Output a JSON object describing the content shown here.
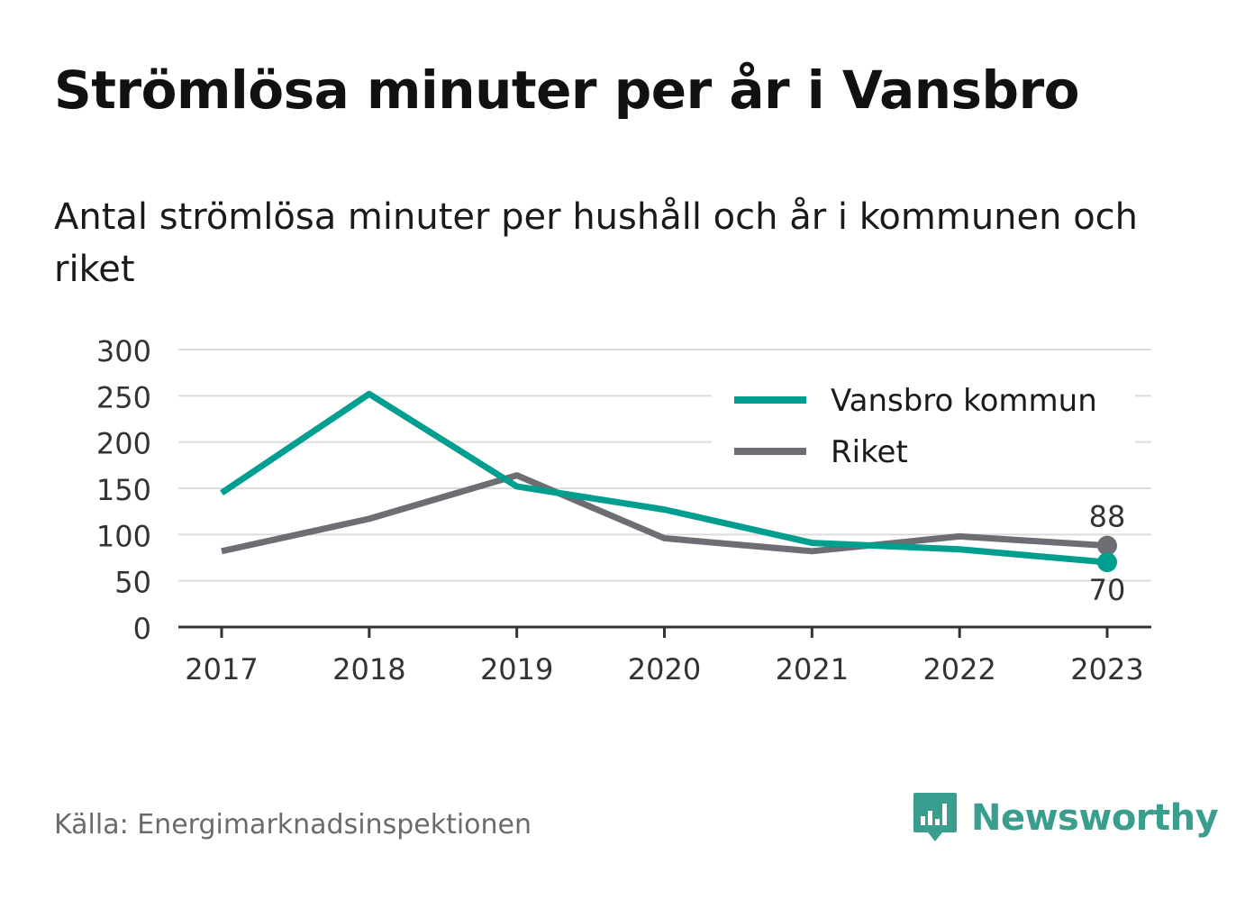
{
  "chart_data": {
    "type": "line",
    "title": "Strömlösa minuter per år i Vansbro",
    "subtitle": "Antal strömlösa minuter per hushåll och år i kommunen och riket",
    "x": [
      "2017",
      "2018",
      "2019",
      "2020",
      "2021",
      "2022",
      "2023"
    ],
    "yticks": [
      "0",
      "50",
      "100",
      "150",
      "200",
      "250",
      "300"
    ],
    "ylim": [
      0,
      300
    ],
    "grid": true,
    "legend": "top-right",
    "series": [
      {
        "name": "Vansbro kommun",
        "color": "#009e8f",
        "values": [
          145,
          252,
          152,
          127,
          91,
          84,
          70
        ]
      },
      {
        "name": "Riket",
        "color": "#6e6d73",
        "values": [
          82,
          117,
          164,
          96,
          82,
          98,
          88
        ]
      }
    ],
    "end_labels": [
      {
        "series": "Riket",
        "text": "88"
      },
      {
        "series": "Vansbro kommun",
        "text": "70"
      }
    ]
  },
  "footer": {
    "source": "Källa: Energimarknadsinspektionen",
    "brand": "Newsworthy"
  },
  "colors": {
    "grid": "#dcdcdc",
    "axis": "#333333",
    "brand": "#3a9e8f"
  },
  "icons": {
    "brand_logo": "bar-chart-speech-bubble-icon"
  }
}
